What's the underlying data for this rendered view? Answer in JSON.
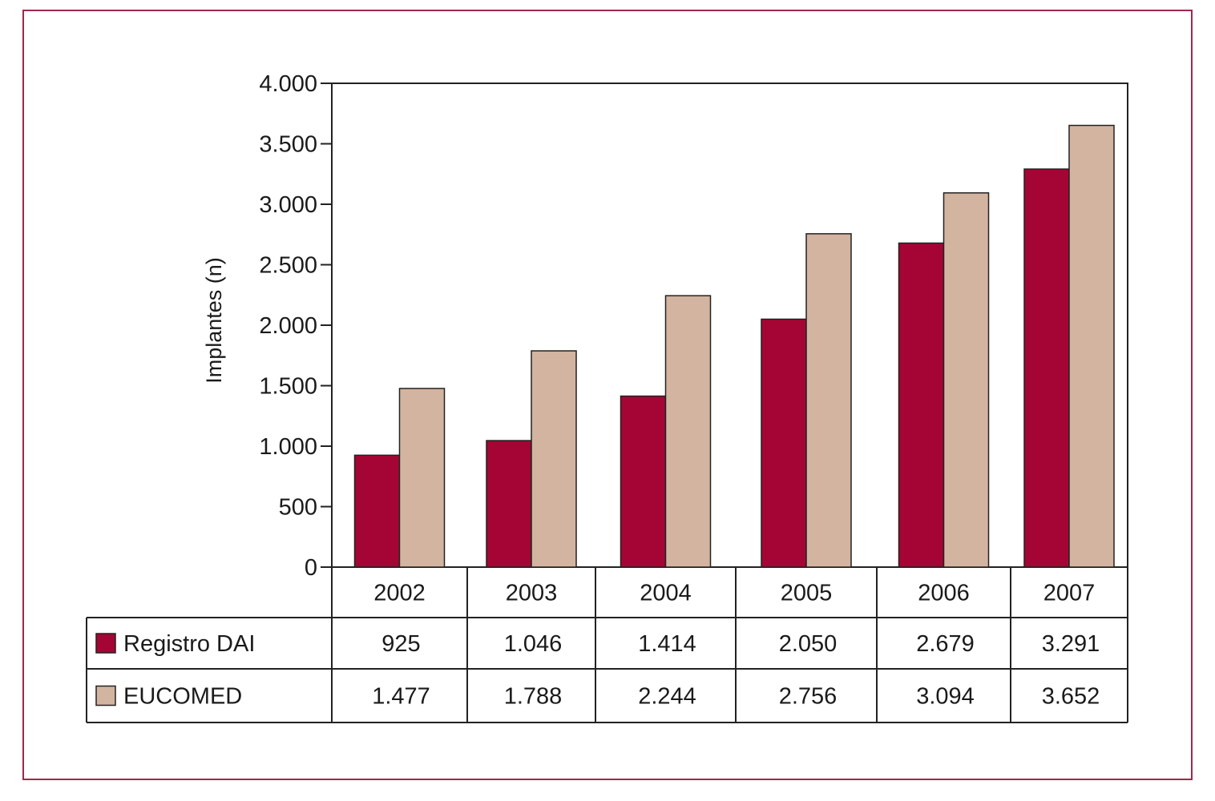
{
  "chart_data": {
    "type": "bar",
    "title": "",
    "xlabel": "",
    "ylabel": "Implantes (n)",
    "ylim": [
      0,
      4000
    ],
    "yticks": [
      0,
      500,
      1000,
      1500,
      2000,
      2500,
      3000,
      3500,
      4000
    ],
    "ytick_labels": [
      "0",
      "500",
      "1.000",
      "1.500",
      "2.000",
      "2.500",
      "3.000",
      "3.500",
      "4.000"
    ],
    "categories": [
      "2002",
      "2003",
      "2004",
      "2005",
      "2006",
      "2007"
    ],
    "series": [
      {
        "name": "Registro DAI",
        "color": "#a50534",
        "values": [
          925,
          1046,
          1414,
          2050,
          2679,
          3291
        ],
        "value_labels": [
          "925",
          "1.046",
          "1.414",
          "2.050",
          "2.679",
          "3.291"
        ]
      },
      {
        "name": "EUCOMED",
        "color": "#d3b4a0",
        "values": [
          1477,
          1788,
          2244,
          2756,
          3094,
          3652
        ],
        "value_labels": [
          "1.477",
          "1.788",
          "2.244",
          "2.756",
          "3.094",
          "3.652"
        ]
      }
    ],
    "legend": "data-table",
    "grid": false
  },
  "colors": {
    "frame": "#a0284a"
  }
}
